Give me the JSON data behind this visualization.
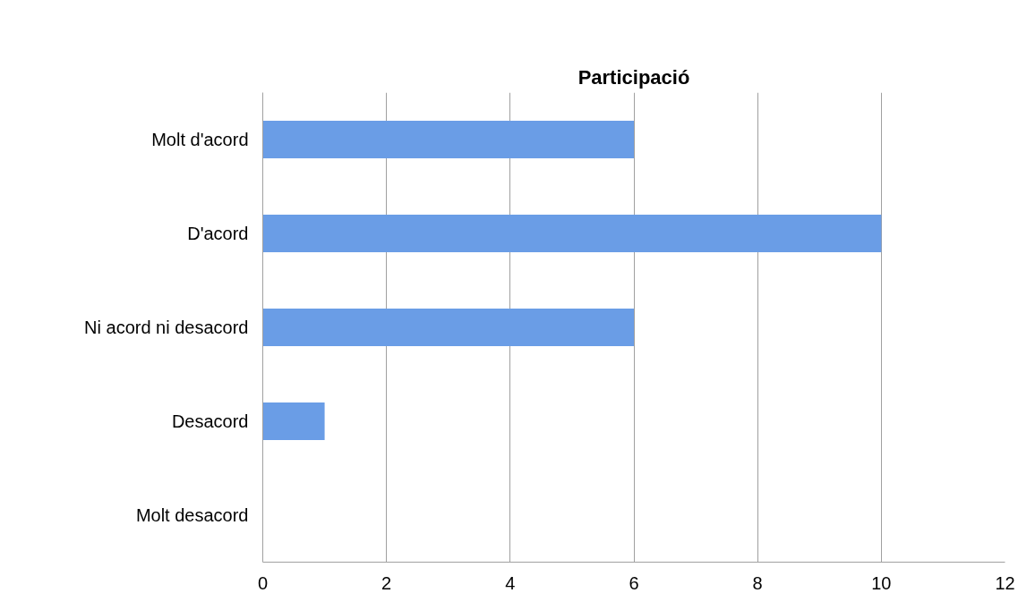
{
  "chart_data": {
    "type": "bar",
    "orientation": "horizontal",
    "title": "Participació",
    "categories": [
      "Molt d'acord",
      "D'acord",
      "Ni acord ni desacord",
      "Desacord",
      "Molt desacord"
    ],
    "values": [
      6,
      10,
      6,
      1,
      0
    ],
    "color": "#6a9de6",
    "xlim": [
      0,
      12
    ],
    "xticks": [
      0,
      2,
      4,
      6,
      8,
      10,
      12
    ],
    "grid": "x"
  }
}
